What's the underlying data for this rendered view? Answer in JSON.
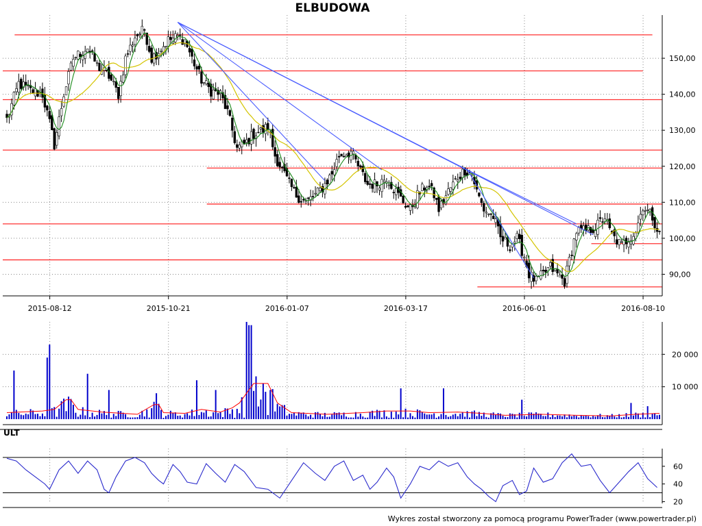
{
  "title": "ELBUDOWA",
  "footer": "Wykres został stworzony za pomocą programu PowerTrader (www.powertrader.pl)",
  "colors": {
    "up": "#ffffff",
    "down": "#000000",
    "ma_short": "#1a8a1a",
    "ma_long": "#d4c400",
    "level": "#ff3030",
    "trend": "#4a5cff",
    "volume": "#0000cc",
    "volume_avg": "#ff0000",
    "ult": "#2a2acc"
  },
  "chart_data": [
    {
      "type": "candlestick",
      "name": "price",
      "x_tick_labels": [
        "2015-08-12",
        "2015-10-21",
        "2016-01-07",
        "2016-03-17",
        "2016-06-01",
        "2016-08-10"
      ],
      "y_tick_labels": [
        "90,00",
        "100,00",
        "110,00",
        "120,00",
        "130,00",
        "140,00",
        "150,00"
      ],
      "y_ticks": [
        90,
        100,
        110,
        120,
        130,
        140,
        150
      ],
      "ylim": [
        84,
        162
      ],
      "bar_count": 276,
      "tick_bar_index": [
        10,
        60,
        110,
        160,
        210,
        260
      ],
      "close_path": [
        [
          0,
          133
        ],
        [
          5,
          143
        ],
        [
          10,
          141
        ],
        [
          15,
          140
        ],
        [
          18,
          132
        ],
        [
          20,
          126
        ],
        [
          24,
          140
        ],
        [
          28,
          150
        ],
        [
          34,
          153
        ],
        [
          38,
          148
        ],
        [
          43,
          145
        ],
        [
          47,
          140
        ],
        [
          50,
          150
        ],
        [
          54,
          156
        ],
        [
          58,
          158
        ],
        [
          61,
          150
        ],
        [
          64,
          152
        ],
        [
          68,
          155
        ],
        [
          72,
          156
        ],
        [
          75,
          155
        ],
        [
          78,
          150
        ],
        [
          82,
          144
        ],
        [
          86,
          141
        ],
        [
          90,
          140
        ],
        [
          93,
          135
        ],
        [
          95,
          130
        ],
        [
          97,
          125
        ],
        [
          100,
          126
        ],
        [
          104,
          129
        ],
        [
          108,
          130
        ],
        [
          110,
          131
        ],
        [
          113,
          123
        ],
        [
          116,
          119
        ],
        [
          119,
          115
        ],
        [
          122,
          112
        ],
        [
          126,
          110
        ],
        [
          130,
          112
        ],
        [
          133,
          114
        ],
        [
          137,
          118
        ],
        [
          140,
          123
        ],
        [
          145,
          124
        ],
        [
          148,
          120
        ],
        [
          152,
          115
        ],
        [
          156,
          115
        ],
        [
          160,
          117
        ],
        [
          163,
          114
        ],
        [
          166,
          111
        ],
        [
          170,
          108
        ],
        [
          173,
          112
        ],
        [
          177,
          115
        ],
        [
          180,
          112
        ],
        [
          182,
          108
        ],
        [
          186,
          113
        ],
        [
          190,
          117
        ],
        [
          193,
          119
        ],
        [
          196,
          118
        ],
        [
          198,
          113
        ],
        [
          201,
          108
        ],
        [
          205,
          106
        ],
        [
          208,
          100
        ],
        [
          212,
          98
        ],
        [
          215,
          100
        ],
        [
          218,
          95
        ],
        [
          220,
          90
        ],
        [
          223,
          88
        ],
        [
          226,
          90
        ],
        [
          229,
          92
        ],
        [
          232,
          90
        ],
        [
          235,
          88
        ],
        [
          237,
          94
        ],
        [
          240,
          102
        ],
        [
          244,
          102
        ],
        [
          248,
          103
        ],
        [
          252,
          106
        ],
        [
          254,
          102
        ],
        [
          256,
          100
        ],
        [
          259,
          98
        ],
        [
          262,
          100
        ],
        [
          265,
          102
        ],
        [
          268,
          109
        ],
        [
          272,
          106
        ],
        [
          275,
          101
        ]
      ],
      "ma_short_note": "green short moving average",
      "ma_long_note": "yellow long moving average",
      "levels": [
        {
          "y": 156.5,
          "from": 5,
          "to": 272
        },
        {
          "y": 146.5,
          "from": 0,
          "to": 268
        },
        {
          "y": 138.5,
          "from": 0,
          "to": 276
        },
        {
          "y": 124.5,
          "from": 0,
          "to": 276
        },
        {
          "y": 119.5,
          "from": 86,
          "to": 276
        },
        {
          "y": 109.5,
          "from": 86,
          "to": 276
        },
        {
          "y": 104.0,
          "from": 0,
          "to": 276
        },
        {
          "y": 98.5,
          "from": 248,
          "to": 276
        },
        {
          "y": 94.0,
          "from": 0,
          "to": 276
        },
        {
          "y": 86.5,
          "from": 200,
          "to": 276
        }
      ],
      "trendlines": [
        {
          "x1": 72,
          "y1": 160,
          "x2": 134,
          "y2": 116
        },
        {
          "x1": 72,
          "y1": 160,
          "x2": 158,
          "y2": 119
        },
        {
          "x1": 72,
          "y1": 160,
          "x2": 194,
          "y2": 119
        },
        {
          "x1": 72,
          "y1": 160,
          "x2": 247,
          "y2": 101
        },
        {
          "x1": 194,
          "y1": 119,
          "x2": 222,
          "y2": 89
        },
        {
          "x1": 194,
          "y1": 119,
          "x2": 240,
          "y2": 104
        }
      ]
    },
    {
      "type": "bar",
      "name": "volume",
      "y_tick_labels": [
        "10 000",
        "20 000"
      ],
      "y_ticks": [
        10000,
        20000
      ],
      "ylim": [
        0,
        30000
      ],
      "spikes": [
        [
          3,
          15000
        ],
        [
          17,
          19000
        ],
        [
          18,
          23000
        ],
        [
          34,
          14000
        ],
        [
          43,
          9000
        ],
        [
          63,
          8000
        ],
        [
          80,
          12000
        ],
        [
          88,
          9000
        ],
        [
          101,
          30000
        ],
        [
          102,
          29000
        ],
        [
          103,
          29000
        ],
        [
          108,
          11000
        ],
        [
          111,
          9000
        ],
        [
          166,
          9500
        ],
        [
          184,
          9500
        ],
        [
          217,
          6000
        ],
        [
          263,
          5000
        ],
        [
          270,
          4000
        ]
      ],
      "avg_path": [
        [
          0,
          2000
        ],
        [
          15,
          2500
        ],
        [
          20,
          3000
        ],
        [
          25,
          6000
        ],
        [
          27,
          6000
        ],
        [
          30,
          3000
        ],
        [
          40,
          2200
        ],
        [
          55,
          1500
        ],
        [
          62,
          4500
        ],
        [
          64,
          4500
        ],
        [
          66,
          2000
        ],
        [
          75,
          1800
        ],
        [
          82,
          3000
        ],
        [
          90,
          2200
        ],
        [
          95,
          3500
        ],
        [
          98,
          5000
        ],
        [
          104,
          11000
        ],
        [
          110,
          11000
        ],
        [
          114,
          5000
        ],
        [
          120,
          2000
        ],
        [
          135,
          1500
        ],
        [
          150,
          2000
        ],
        [
          160,
          2500
        ],
        [
          170,
          2500
        ],
        [
          178,
          2000
        ],
        [
          190,
          2200
        ],
        [
          200,
          1800
        ],
        [
          210,
          1200
        ],
        [
          225,
          1500
        ],
        [
          240,
          1200
        ],
        [
          255,
          1000
        ],
        [
          265,
          1500
        ],
        [
          275,
          1800
        ]
      ]
    },
    {
      "type": "line",
      "name": "ULT",
      "y_tick_labels": [
        "20",
        "40",
        "60"
      ],
      "y_ticks": [
        20,
        40,
        60
      ],
      "ylim": [
        18,
        80
      ],
      "levels": [
        30,
        70
      ],
      "path": [
        [
          0,
          69
        ],
        [
          4,
          66
        ],
        [
          8,
          56
        ],
        [
          12,
          48
        ],
        [
          16,
          40
        ],
        [
          18,
          34
        ],
        [
          22,
          56
        ],
        [
          26,
          66
        ],
        [
          30,
          52
        ],
        [
          34,
          66
        ],
        [
          38,
          56
        ],
        [
          41,
          34
        ],
        [
          43,
          30
        ],
        [
          46,
          48
        ],
        [
          50,
          66
        ],
        [
          54,
          70
        ],
        [
          58,
          64
        ],
        [
          61,
          52
        ],
        [
          64,
          44
        ],
        [
          66,
          40
        ],
        [
          70,
          62
        ],
        [
          73,
          54
        ],
        [
          76,
          42
        ],
        [
          80,
          40
        ],
        [
          84,
          63
        ],
        [
          88,
          52
        ],
        [
          92,
          42
        ],
        [
          96,
          62
        ],
        [
          100,
          54
        ],
        [
          105,
          36
        ],
        [
          110,
          34
        ],
        [
          115,
          24
        ],
        [
          120,
          44
        ],
        [
          125,
          64
        ],
        [
          130,
          52
        ],
        [
          134,
          44
        ],
        [
          138,
          60
        ],
        [
          142,
          66
        ],
        [
          146,
          44
        ],
        [
          150,
          50
        ],
        [
          153,
          34
        ],
        [
          156,
          42
        ],
        [
          160,
          58
        ],
        [
          163,
          48
        ],
        [
          166,
          24
        ],
        [
          170,
          40
        ],
        [
          174,
          60
        ],
        [
          178,
          56
        ],
        [
          182,
          66
        ],
        [
          186,
          60
        ],
        [
          190,
          64
        ],
        [
          194,
          48
        ],
        [
          197,
          40
        ],
        [
          200,
          34
        ],
        [
          203,
          26
        ],
        [
          206,
          20
        ],
        [
          209,
          38
        ],
        [
          213,
          44
        ],
        [
          216,
          28
        ],
        [
          219,
          32
        ],
        [
          222,
          58
        ],
        [
          226,
          42
        ],
        [
          230,
          46
        ],
        [
          234,
          64
        ],
        [
          238,
          74
        ],
        [
          242,
          60
        ],
        [
          246,
          62
        ],
        [
          250,
          44
        ],
        [
          254,
          30
        ],
        [
          258,
          42
        ],
        [
          262,
          54
        ],
        [
          266,
          64
        ],
        [
          270,
          46
        ],
        [
          274,
          36
        ]
      ]
    }
  ]
}
